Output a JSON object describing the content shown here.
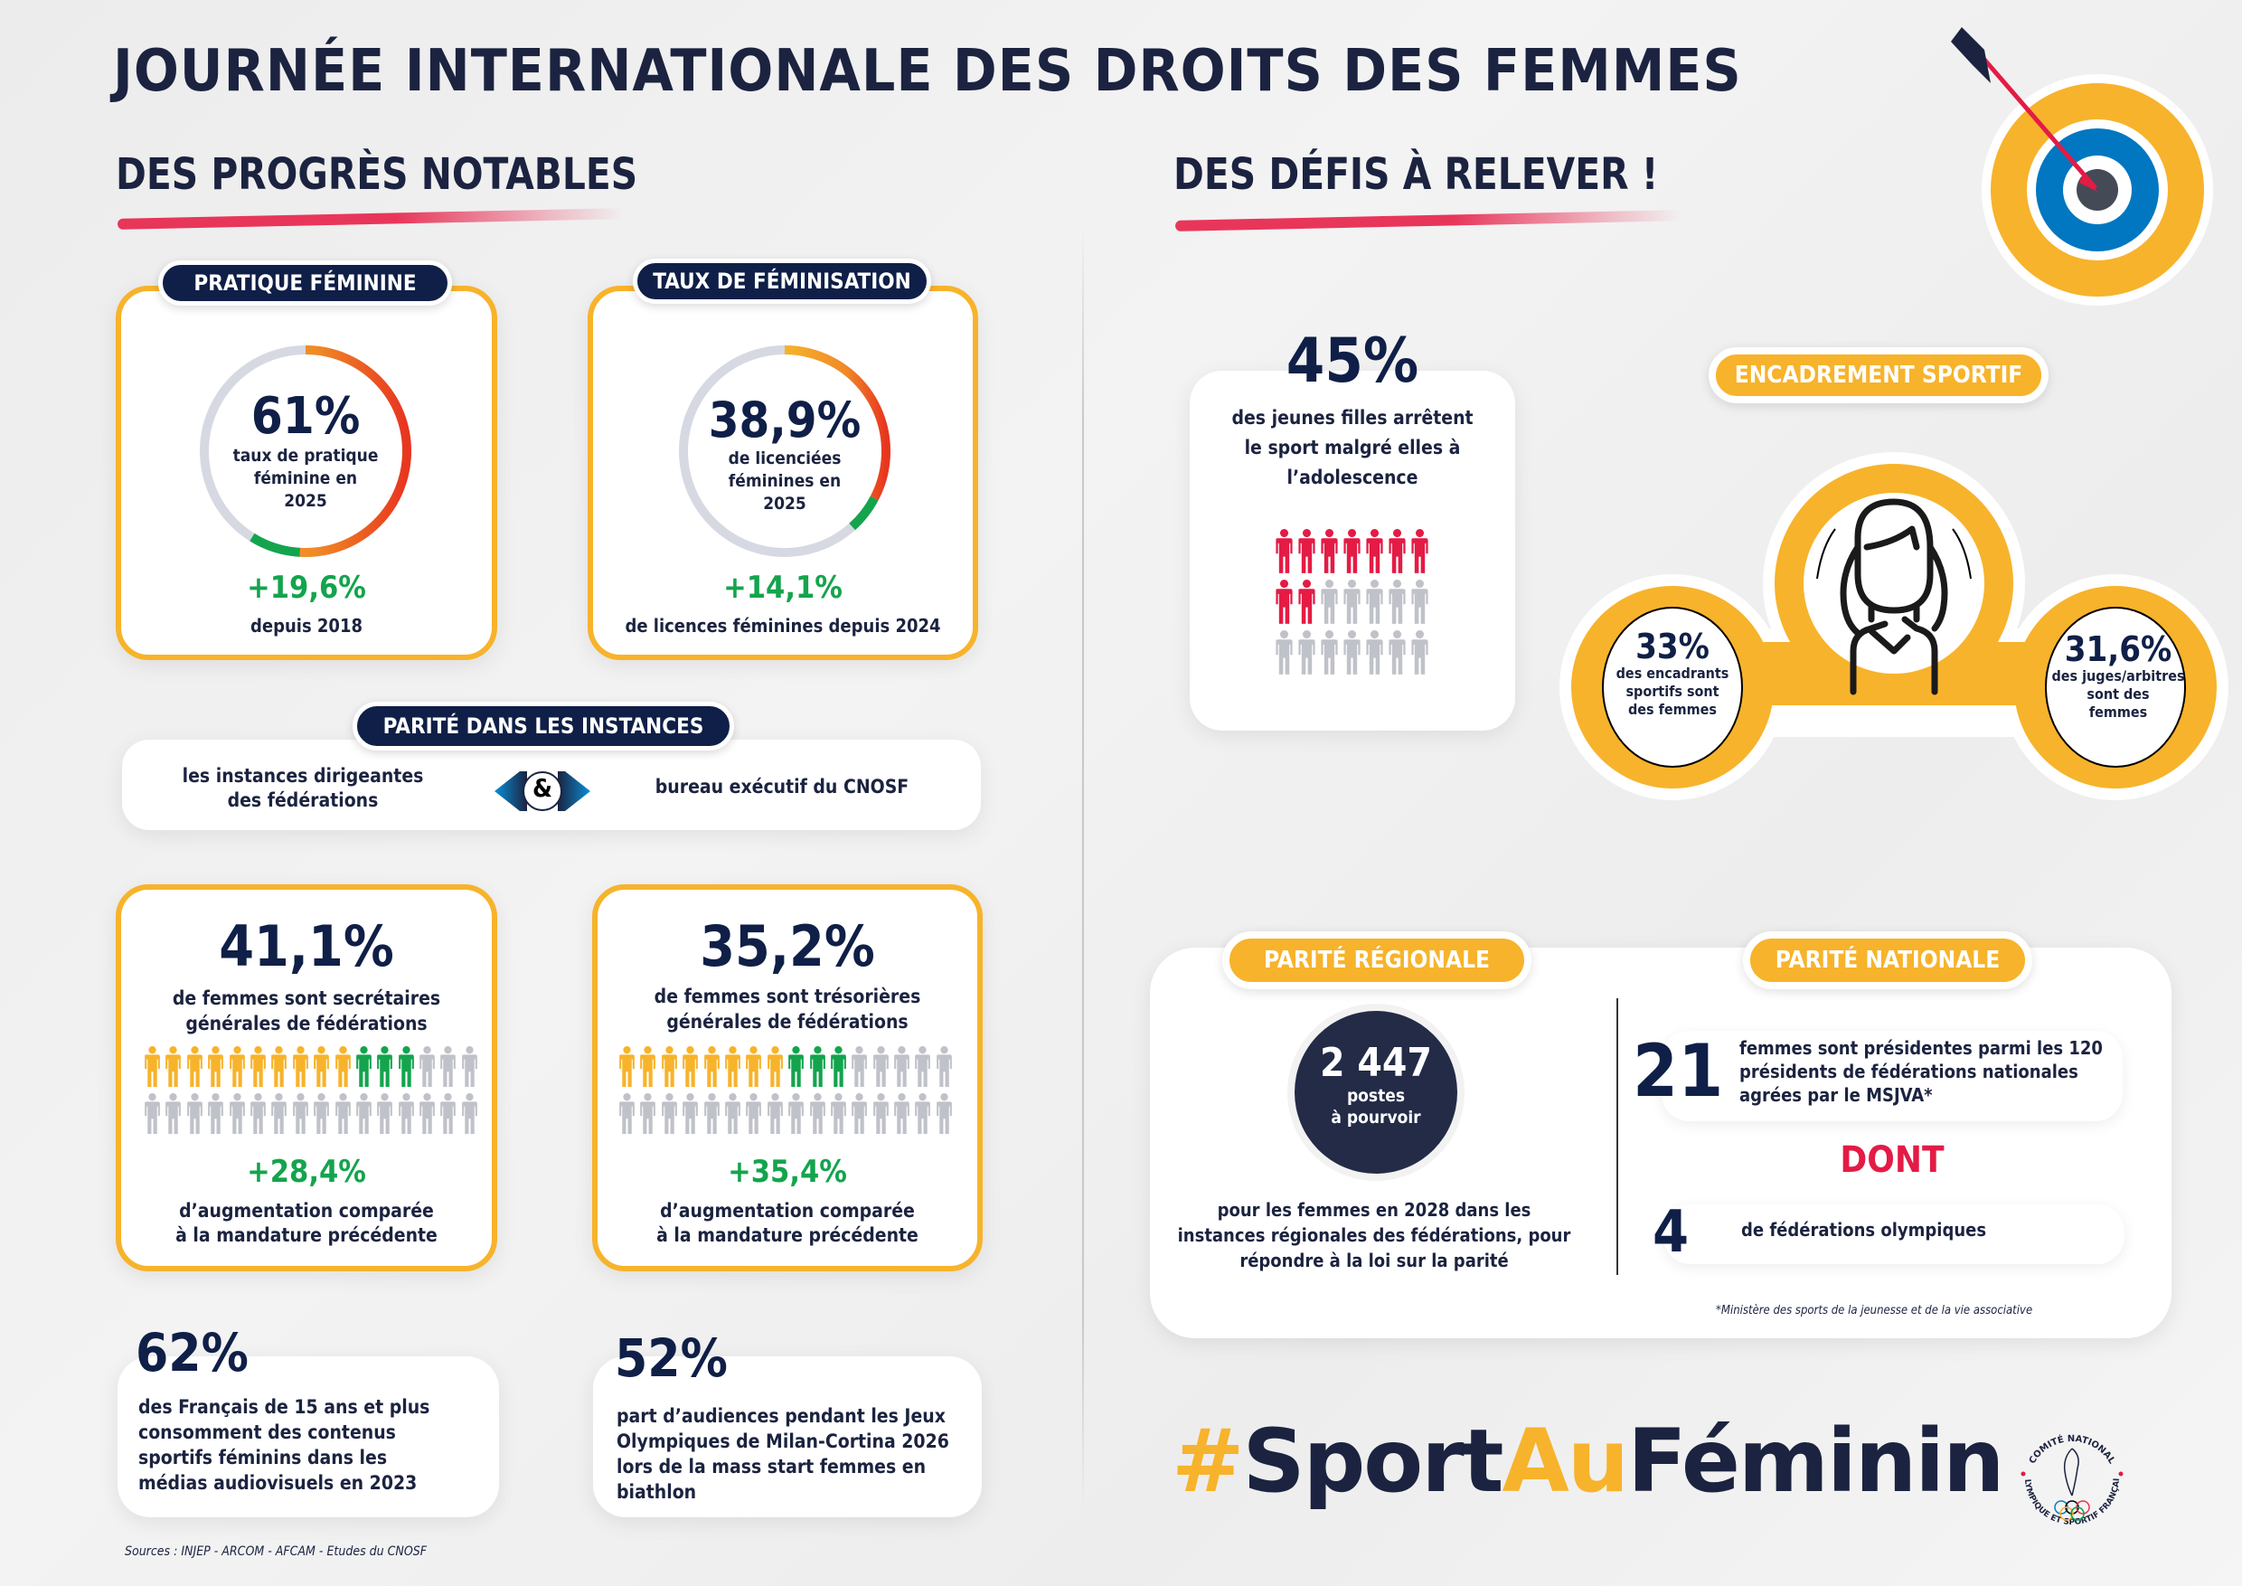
{
  "title": "JOURNÉE INTERNATIONALE DES DROITS DES FEMMES",
  "left": {
    "heading": "DES PROGRÈS NOTABLES",
    "pratique": {
      "tag": "PRATIQUE FÉMININE",
      "value": "61%",
      "desc_lines": [
        "taux de pratique",
        "féminine en",
        "2025"
      ],
      "delta": "+19,6%",
      "delta_desc": "depuis 2018"
    },
    "feminisation": {
      "tag": "TAUX DE FÉMINISATION",
      "value": "38,9%",
      "desc_lines": [
        "de licenciées",
        "féminines en",
        "2025"
      ],
      "delta": "+14,1%",
      "delta_desc": "de licences féminines depuis 2024"
    },
    "parite_instances": {
      "tag": "PARITÉ DANS LES INSTANCES",
      "left_lines": [
        "les instances dirigeantes",
        "des fédérations"
      ],
      "connector": "&",
      "right": "bureau exécutif du CNOSF"
    },
    "secretaires": {
      "value": "41,1%",
      "desc_lines": [
        "de femmes sont secrétaires",
        "générales de fédérations"
      ],
      "delta": "+28,4%",
      "delta_desc_lines": [
        "d’augmentation comparée",
        "à la mandature précédente"
      ],
      "people": {
        "yellow": 10,
        "green": 3,
        "grey": 19,
        "per_row": 16
      }
    },
    "tresorieres": {
      "value": "35,2%",
      "desc_lines": [
        "de femmes sont trésorières",
        "générales de fédérations"
      ],
      "delta": "+35,4%",
      "delta_desc_lines": [
        "d’augmentation comparée",
        "à la mandature précédente"
      ],
      "people": {
        "yellow": 8,
        "green": 3,
        "grey": 21,
        "per_row": 16
      }
    },
    "medias": {
      "value": "62%",
      "desc_lines": [
        "des Français de 15 ans et plus",
        "consomment des contenus",
        "sportifs féminins dans les",
        "médias audiovisuels en 2023"
      ]
    },
    "audiences": {
      "value": "52%",
      "desc_lines": [
        "part d’audiences pendant les Jeux",
        "Olympiques de Milan-Cortina 2026",
        "lors de la mass start femmes en",
        "biathlon"
      ]
    },
    "sources": "Sources : INJEP - ARCOM - AFCAM -  Etudes du CNOSF"
  },
  "right": {
    "heading": "DES DÉFIS À RELEVER !",
    "abandon": {
      "value": "45%",
      "desc_lines": [
        "des jeunes filles arrêtent",
        "le sport malgré elles à",
        "l’adolescence"
      ],
      "people": {
        "red": 9,
        "grey": 12,
        "per_row": 7
      }
    },
    "encadrement": {
      "tag": "ENCADREMENT SPORTIF",
      "left_value": "33%",
      "left_desc_lines": [
        "des encadrants",
        "sportifs sont",
        "des femmes"
      ],
      "right_value": "31,6%",
      "right_desc_lines": [
        "des juges/arbitres",
        "sont des",
        "femmes"
      ]
    },
    "parite_regionale": {
      "tag": "PARITÉ RÉGIONALE",
      "value": "2 447",
      "value_sub_lines": [
        "postes",
        "à pourvoir"
      ],
      "desc_lines": [
        "pour les femmes en 2028 dans les",
        "instances régionales des fédérations, pour",
        "répondre à la loi sur la parité"
      ]
    },
    "parite_nationale": {
      "tag": "PARITÉ NATIONALE",
      "value1": "21",
      "desc1_lines": [
        "femmes sont présidentes parmi les 120",
        "présidents de fédérations nationales",
        "agrées par le MSJVA*"
      ],
      "connector": "DONT",
      "value2": "4",
      "desc2": "de fédérations olympiques",
      "footnote": "*Ministère des sports de la jeunesse et de la vie associative"
    },
    "hashtag": {
      "part1": "#",
      "part2": "Sport",
      "part3": "Au",
      "part4": "Féminin"
    },
    "logo": {
      "top_text": "COMITÉ NATIONAL",
      "bottom_text": "OLYMPIQUE ET SPORTIF FRANÇAIS"
    }
  },
  "colors": {
    "navy": "#0f1f47",
    "yellow": "#f7b32b",
    "green": "#14a44d",
    "red": "#e31b45",
    "grey": "#c0c2c9",
    "blue": "#0077c0"
  }
}
